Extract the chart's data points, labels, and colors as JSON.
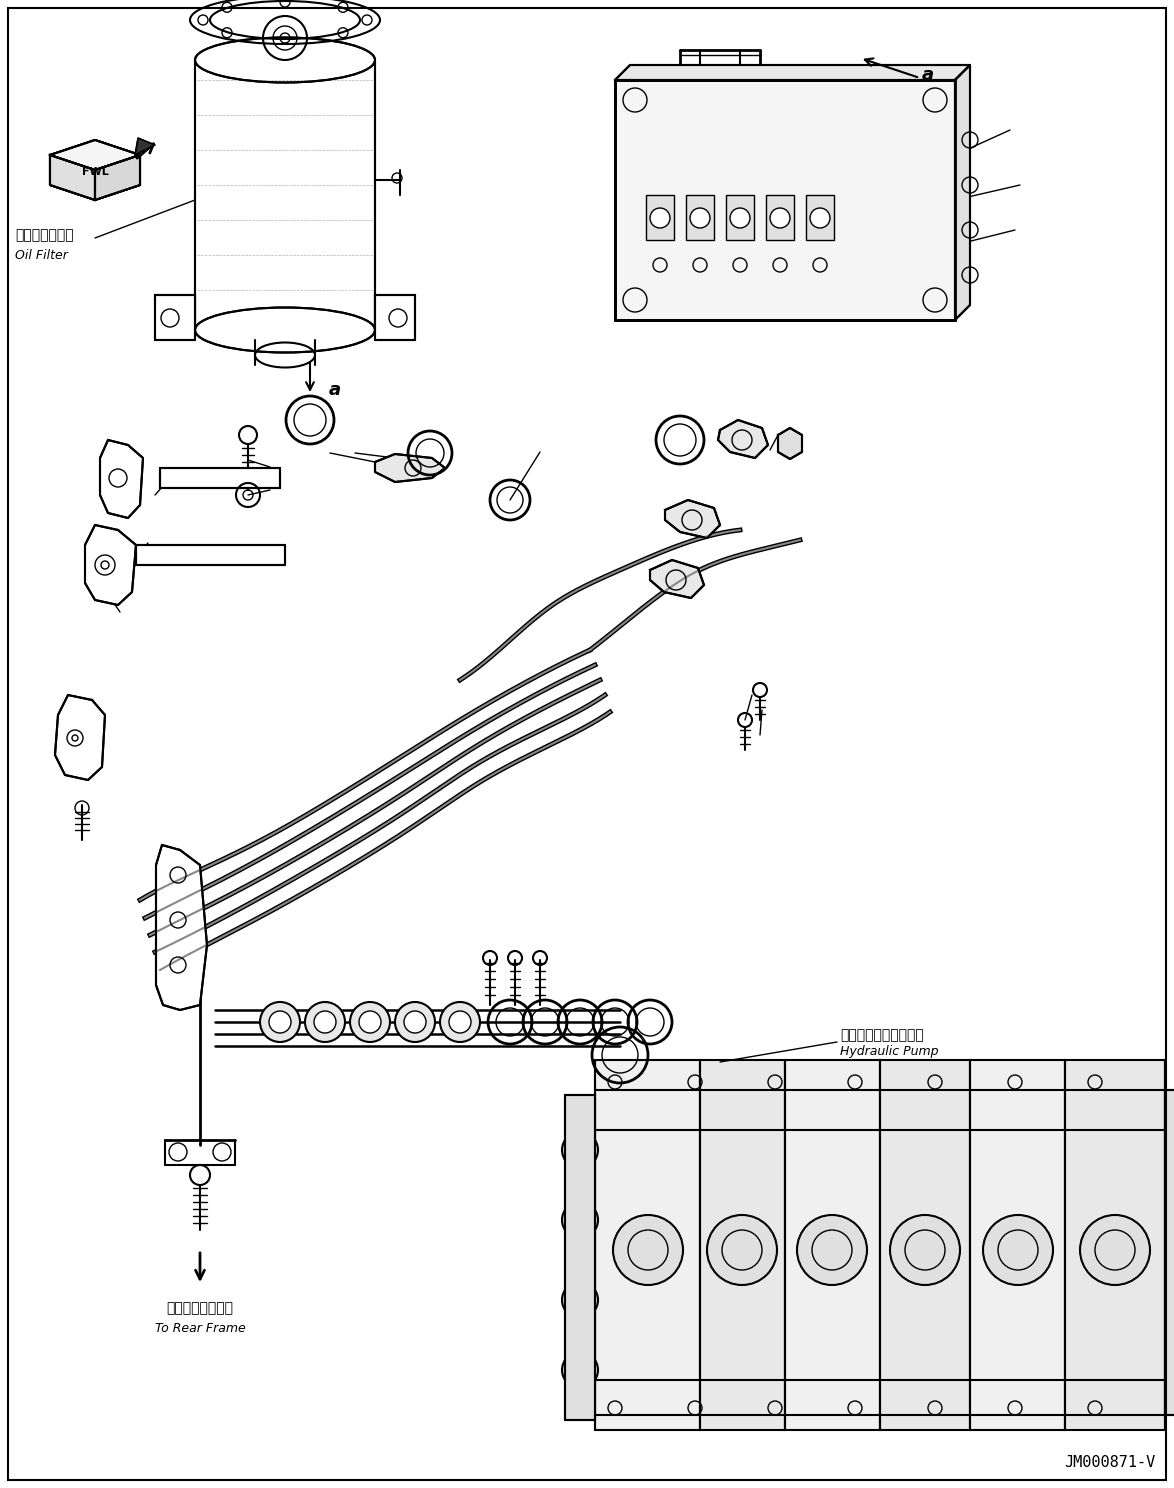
{
  "background_color": "#ffffff",
  "line_color": "#000000",
  "figure_width": 11.74,
  "figure_height": 14.88,
  "dpi": 100,
  "label_oil_filter_ja": "オイルフィルタ",
  "label_oil_filter_en": "Oil Filter",
  "label_hydraulic_pump_ja": "ハイドロリックポンプ",
  "label_hydraulic_pump_en": "Hydraulic Pump",
  "label_rear_frame_ja": "リヤーフレームへ",
  "label_rear_frame_en": "To Rear Frame",
  "ref_number": "JM000871-V",
  "label_a": "a"
}
